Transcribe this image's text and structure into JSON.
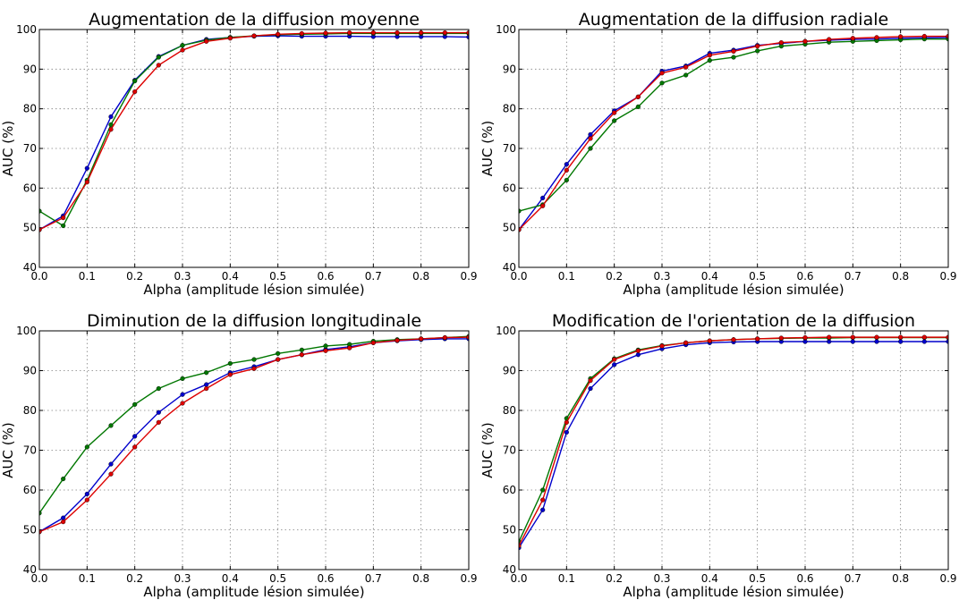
{
  "chart_data": [
    {
      "type": "line",
      "title": "Augmentation de la diffusion moyenne",
      "xlabel": "Alpha (amplitude lésion simulée)",
      "ylabel": "AUC (%)",
      "xlim": [
        0,
        0.9
      ],
      "ylim": [
        40,
        100
      ],
      "grid": true,
      "x": [
        0.0,
        0.05,
        0.1,
        0.15,
        0.2,
        0.25,
        0.3,
        0.35,
        0.4,
        0.45,
        0.5,
        0.55,
        0.6,
        0.65,
        0.7,
        0.75,
        0.8,
        0.85,
        0.9
      ],
      "x_ticks": [
        "0.0",
        "0.1",
        "0.2",
        "0.3",
        "0.4",
        "0.5",
        "0.6",
        "0.7",
        "0.8",
        "0.9"
      ],
      "y_ticks": [
        "40",
        "50",
        "60",
        "70",
        "80",
        "90",
        "100"
      ],
      "series": [
        {
          "color": "#0000cc",
          "values": [
            49.5,
            53.0,
            65.0,
            78.0,
            87.2,
            93.2,
            96.0,
            97.5,
            98.0,
            98.3,
            98.4,
            98.3,
            98.3,
            98.3,
            98.2,
            98.2,
            98.2,
            98.2,
            98.1
          ]
        },
        {
          "color": "#007700",
          "values": [
            54.2,
            50.5,
            62.0,
            76.0,
            87.0,
            93.0,
            96.0,
            97.3,
            98.0,
            98.4,
            98.7,
            98.8,
            98.9,
            99.0,
            99.0,
            99.0,
            99.0,
            99.0,
            99.0
          ]
        },
        {
          "color": "#dd0000",
          "values": [
            49.5,
            52.5,
            61.5,
            74.8,
            84.3,
            91.0,
            94.8,
            97.0,
            97.8,
            98.4,
            98.8,
            99.0,
            99.1,
            99.2,
            99.2,
            99.2,
            99.2,
            99.2,
            99.2
          ]
        }
      ]
    },
    {
      "type": "line",
      "title": "Augmentation de la diffusion radiale",
      "xlabel": "Alpha (amplitude lésion simulée)",
      "ylabel": "AUC (%)",
      "xlim": [
        0,
        0.9
      ],
      "ylim": [
        40,
        100
      ],
      "grid": true,
      "x": [
        0.0,
        0.05,
        0.1,
        0.15,
        0.2,
        0.25,
        0.3,
        0.35,
        0.4,
        0.45,
        0.5,
        0.55,
        0.6,
        0.65,
        0.7,
        0.75,
        0.8,
        0.85,
        0.9
      ],
      "x_ticks": [
        "0.0",
        "0.1",
        "0.2",
        "0.3",
        "0.4",
        "0.5",
        "0.6",
        "0.7",
        "0.8",
        "0.9"
      ],
      "y_ticks": [
        "40",
        "50",
        "60",
        "70",
        "80",
        "90",
        "100"
      ],
      "series": [
        {
          "color": "#0000cc",
          "values": [
            49.5,
            57.5,
            66.0,
            73.5,
            79.5,
            83.0,
            89.5,
            90.8,
            94.0,
            94.8,
            96.0,
            96.5,
            97.0,
            97.3,
            97.5,
            97.6,
            97.8,
            97.9,
            98.0
          ]
        },
        {
          "color": "#007700",
          "values": [
            54.2,
            55.8,
            62.0,
            70.0,
            77.0,
            80.5,
            86.5,
            88.5,
            92.2,
            93.0,
            94.6,
            95.8,
            96.3,
            96.8,
            97.0,
            97.2,
            97.4,
            97.6,
            97.6
          ]
        },
        {
          "color": "#dd0000",
          "values": [
            49.5,
            55.5,
            64.5,
            72.5,
            79.0,
            83.0,
            89.0,
            90.5,
            93.5,
            94.5,
            95.8,
            96.7,
            97.0,
            97.5,
            97.8,
            98.0,
            98.2,
            98.3,
            98.3
          ]
        }
      ]
    },
    {
      "type": "line",
      "title": "Diminution de la diffusion longitudinale",
      "xlabel": "Alpha (amplitude lésion simulée)",
      "ylabel": "AUC (%)",
      "xlim": [
        0,
        0.9
      ],
      "ylim": [
        40,
        100
      ],
      "grid": true,
      "x": [
        0.0,
        0.05,
        0.1,
        0.15,
        0.2,
        0.25,
        0.3,
        0.35,
        0.4,
        0.45,
        0.5,
        0.55,
        0.6,
        0.65,
        0.7,
        0.75,
        0.8,
        0.85,
        0.9
      ],
      "x_ticks": [
        "0.0",
        "0.1",
        "0.2",
        "0.3",
        "0.4",
        "0.5",
        "0.6",
        "0.7",
        "0.8",
        "0.9"
      ],
      "y_ticks": [
        "40",
        "50",
        "60",
        "70",
        "80",
        "90",
        "100"
      ],
      "series": [
        {
          "color": "#0000cc",
          "values": [
            49.5,
            53.0,
            59.0,
            66.5,
            73.5,
            79.5,
            84.0,
            86.5,
            89.5,
            91.0,
            92.8,
            94.0,
            95.3,
            96.0,
            97.0,
            97.5,
            97.8,
            98.0,
            98.0
          ]
        },
        {
          "color": "#007700",
          "values": [
            54.2,
            62.8,
            70.8,
            76.2,
            81.5,
            85.5,
            88.0,
            89.5,
            91.8,
            92.8,
            94.3,
            95.2,
            96.2,
            96.6,
            97.4,
            97.8,
            98.0,
            98.3,
            98.6
          ]
        },
        {
          "color": "#dd0000",
          "values": [
            49.5,
            52.0,
            57.5,
            64.0,
            70.8,
            77.0,
            81.8,
            85.5,
            89.0,
            90.5,
            92.8,
            94.0,
            95.0,
            95.7,
            97.0,
            97.6,
            98.0,
            98.3,
            98.4
          ]
        }
      ]
    },
    {
      "type": "line",
      "title": "Modification de l'orientation de la diffusion",
      "xlabel": "Alpha (amplitude lésion simulée)",
      "ylabel": "AUC (%)",
      "xlim": [
        0,
        0.9
      ],
      "ylim": [
        40,
        100
      ],
      "grid": true,
      "x": [
        0.0,
        0.05,
        0.1,
        0.15,
        0.2,
        0.25,
        0.3,
        0.35,
        0.4,
        0.45,
        0.5,
        0.55,
        0.6,
        0.65,
        0.7,
        0.75,
        0.8,
        0.85,
        0.9
      ],
      "x_ticks": [
        "0.0",
        "0.1",
        "0.2",
        "0.3",
        "0.4",
        "0.5",
        "0.6",
        "0.7",
        "0.8",
        "0.9"
      ],
      "y_ticks": [
        "40",
        "50",
        "60",
        "70",
        "80",
        "90",
        "100"
      ],
      "series": [
        {
          "color": "#0000cc",
          "values": [
            45.5,
            55.0,
            74.5,
            85.5,
            91.5,
            94.0,
            95.5,
            96.5,
            97.0,
            97.2,
            97.3,
            97.3,
            97.3,
            97.3,
            97.3,
            97.3,
            97.3,
            97.3,
            97.3
          ]
        },
        {
          "color": "#007700",
          "values": [
            47.0,
            60.0,
            78.0,
            88.0,
            93.0,
            95.2,
            96.3,
            97.0,
            97.5,
            97.8,
            98.0,
            98.1,
            98.2,
            98.2,
            98.3,
            98.3,
            98.3,
            98.3,
            98.3
          ]
        },
        {
          "color": "#dd0000",
          "values": [
            46.0,
            57.5,
            77.0,
            87.5,
            92.8,
            95.0,
            96.2,
            97.0,
            97.5,
            97.8,
            98.0,
            98.2,
            98.3,
            98.4,
            98.4,
            98.4,
            98.4,
            98.4,
            98.4
          ]
        }
      ]
    }
  ]
}
